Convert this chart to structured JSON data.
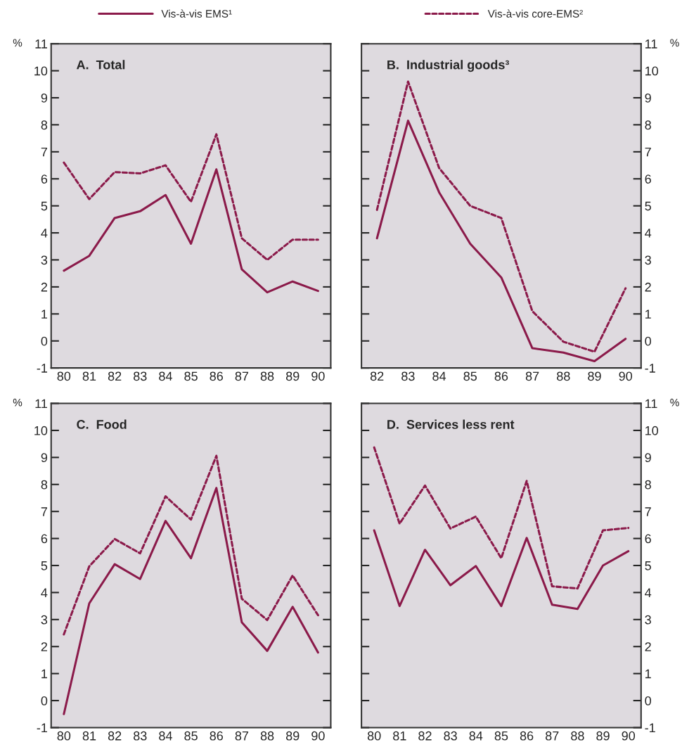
{
  "chart_data": [
    {
      "type": "line",
      "title": "A.  Total",
      "ylabel": "%",
      "x": [
        80,
        81,
        82,
        83,
        84,
        85,
        86,
        87,
        88,
        89,
        90
      ],
      "xlim": [
        79.5,
        90.5
      ],
      "xticks": [
        80,
        81,
        82,
        83,
        84,
        85,
        86,
        87,
        88,
        89,
        90
      ],
      "ylim": [
        -1,
        11
      ],
      "yticks": [
        -1,
        0,
        1,
        2,
        3,
        4,
        5,
        6,
        7,
        8,
        9,
        10,
        11
      ],
      "legend": "top",
      "series": [
        {
          "name": "Vis-à-vis EMS¹",
          "color": "#8b1a4a",
          "line_style": "solid",
          "values": [
            2.6,
            3.15,
            4.55,
            4.8,
            5.4,
            3.6,
            6.35,
            2.65,
            1.8,
            2.2,
            1.85
          ]
        },
        {
          "name": "Vis-à-vis core-EMS²",
          "color": "#8b1a4a",
          "line_style": "dashed",
          "values": [
            6.6,
            5.25,
            6.25,
            6.2,
            6.5,
            5.15,
            7.65,
            3.8,
            3.0,
            3.75,
            3.75
          ]
        }
      ]
    },
    {
      "type": "line",
      "title": "B.  Industrial goods³",
      "ylabel": "%",
      "x": [
        82,
        83,
        84,
        85,
        86,
        87,
        88,
        89,
        90
      ],
      "xlim": [
        81.5,
        90.5
      ],
      "xticks": [
        82,
        83,
        84,
        85,
        86,
        87,
        88,
        89,
        90
      ],
      "ylim": [
        -1,
        11
      ],
      "yticks": [
        -1,
        0,
        1,
        2,
        3,
        4,
        5,
        6,
        7,
        8,
        9,
        10,
        11
      ],
      "series": [
        {
          "color": "#8b1a4a",
          "line_style": "solid",
          "values": [
            3.8,
            8.15,
            5.5,
            3.6,
            2.35,
            -0.27,
            -0.43,
            -0.75,
            0.08
          ]
        },
        {
          "color": "#8b1a4a",
          "line_style": "dashed",
          "values": [
            4.85,
            9.6,
            6.4,
            5.0,
            4.55,
            1.1,
            -0.03,
            -0.4,
            1.95
          ]
        }
      ]
    },
    {
      "type": "line",
      "title": "C.  Food",
      "ylabel": "%",
      "x": [
        80,
        81,
        82,
        83,
        84,
        85,
        86,
        87,
        88,
        89,
        90
      ],
      "xlim": [
        79.5,
        90.5
      ],
      "xticks": [
        80,
        81,
        82,
        83,
        84,
        85,
        86,
        87,
        88,
        89,
        90
      ],
      "ylim": [
        -1,
        11
      ],
      "yticks": [
        -1,
        0,
        1,
        2,
        3,
        4,
        5,
        6,
        7,
        8,
        9,
        10,
        11
      ],
      "series": [
        {
          "color": "#8b1a4a",
          "line_style": "solid",
          "values": [
            -0.5,
            3.6,
            5.05,
            4.5,
            6.65,
            5.27,
            7.87,
            2.9,
            1.84,
            3.47,
            1.78
          ]
        },
        {
          "color": "#8b1a4a",
          "line_style": "dashed",
          "values": [
            2.45,
            4.97,
            5.98,
            5.45,
            7.56,
            6.7,
            9.06,
            3.77,
            2.98,
            4.63,
            3.16
          ]
        }
      ]
    },
    {
      "type": "line",
      "title": "D.  Services less rent",
      "ylabel": "%",
      "x": [
        80,
        81,
        82,
        83,
        84,
        85,
        86,
        87,
        88,
        89,
        90
      ],
      "xlim": [
        79.5,
        90.5
      ],
      "xticks": [
        80,
        81,
        82,
        83,
        84,
        85,
        86,
        87,
        88,
        89,
        90
      ],
      "ylim": [
        -1,
        11
      ],
      "yticks": [
        -1,
        0,
        1,
        2,
        3,
        4,
        5,
        6,
        7,
        8,
        9,
        10,
        11
      ],
      "series": [
        {
          "color": "#8b1a4a",
          "line_style": "solid",
          "values": [
            6.3,
            3.5,
            5.58,
            4.27,
            4.98,
            3.5,
            6.02,
            3.55,
            3.39,
            5.0,
            5.53
          ]
        },
        {
          "color": "#8b1a4a",
          "line_style": "dashed",
          "values": [
            9.37,
            6.55,
            7.96,
            6.37,
            6.81,
            5.27,
            8.13,
            4.23,
            4.15,
            6.3,
            6.39
          ]
        }
      ]
    }
  ]
}
